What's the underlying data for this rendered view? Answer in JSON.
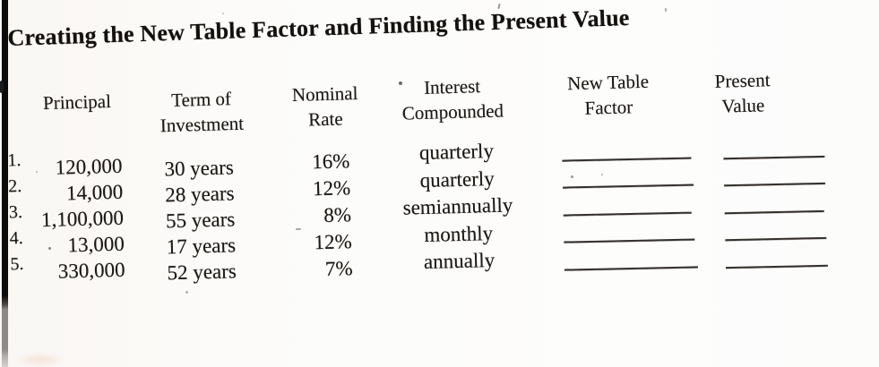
{
  "page": {
    "title": "Creating the New Table Factor and Finding the Present Value"
  },
  "worksheet": {
    "headers": {
      "principal": {
        "line1": "Principal",
        "line2": ""
      },
      "term": {
        "line1": "Term of",
        "line2": "Investment"
      },
      "rate": {
        "line1": "Nominal",
        "line2": "Rate"
      },
      "compounded": {
        "line1": "Interest",
        "line2": "Compounded"
      },
      "new_table_factor": {
        "line1": "New Table",
        "line2": "Factor"
      },
      "present_value": {
        "line1": "Present",
        "line2": "Value"
      }
    },
    "rows": [
      {
        "num": "1.",
        "principal": "120,000",
        "term": "30 years",
        "rate": "16%",
        "compounded": "quarterly",
        "new_table_factor": "",
        "present_value": ""
      },
      {
        "num": "2.",
        "principal": "14,000",
        "term": "28 years",
        "rate": "12%",
        "compounded": "quarterly",
        "new_table_factor": "",
        "present_value": ""
      },
      {
        "num": "3.",
        "principal": "1,100,000",
        "term": "55 years",
        "rate": "8%",
        "compounded": "semiannually",
        "new_table_factor": "",
        "present_value": ""
      },
      {
        "num": "4.",
        "principal": "13,000",
        "term": "17 years",
        "rate": "12%",
        "compounded": "monthly",
        "new_table_factor": "",
        "present_value": ""
      },
      {
        "num": "5.",
        "principal": "330,000",
        "term": "52 years",
        "rate": "7%",
        "compounded": "annually",
        "new_table_factor": "",
        "present_value": ""
      }
    ]
  },
  "colors": {
    "ink": "#1d1915",
    "paper": "#fcfaf7",
    "edge_bar_black": "#0b0b0b",
    "edge_bar_gray": "#8e8a88",
    "blank_line": "#332f2b"
  }
}
